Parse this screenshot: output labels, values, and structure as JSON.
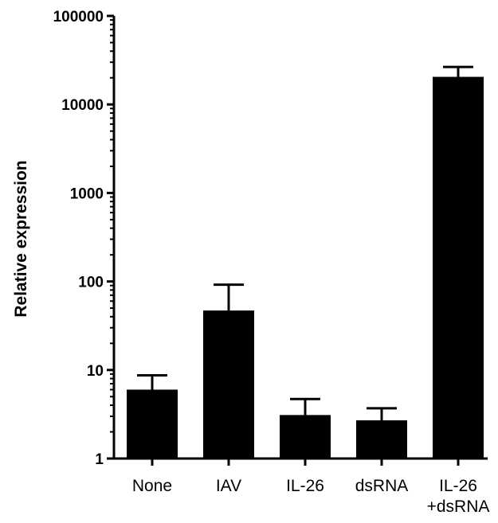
{
  "chart_data": {
    "type": "bar",
    "title": "",
    "xlabel": "",
    "ylabel": "Relative expression",
    "yscale": "log",
    "ylim": [
      1,
      100000
    ],
    "yticks": [
      1,
      10,
      100,
      1000,
      10000,
      100000
    ],
    "ytick_labels": [
      "1",
      "10",
      "100",
      "1000",
      "10000",
      "100000"
    ],
    "categories": [
      "None",
      "IAV",
      "IL-26",
      "dsRNA",
      "IL-26\n+dsRNA"
    ],
    "values": [
      6,
      47,
      3.1,
      2.7,
      20500
    ],
    "errors_upper": [
      8.7,
      92,
      4.7,
      3.7,
      26500
    ],
    "grid": false,
    "legend": "none",
    "bar_color": "#000000",
    "axis_color": "#000000"
  }
}
